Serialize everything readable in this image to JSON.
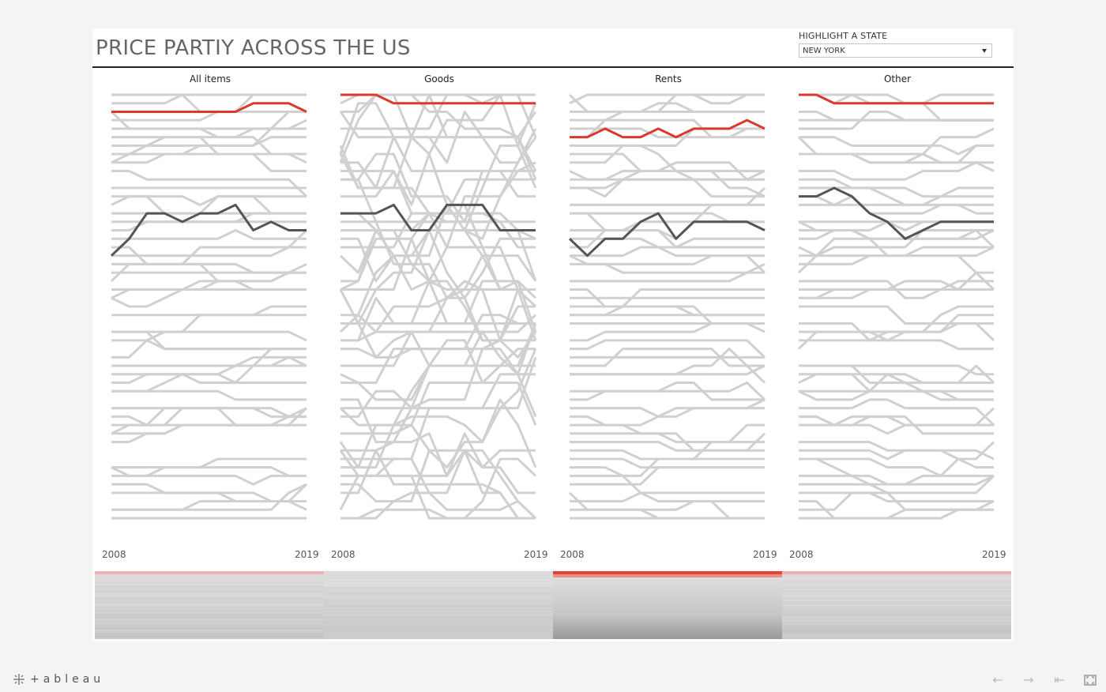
{
  "dashboard": {
    "title": "PRICE PARTIY ACROSS THE US",
    "filter": {
      "label": "HIGHLIGHT A STATE",
      "selected": "NEW YORK"
    }
  },
  "colors": {
    "highlight": "#d93a2b",
    "secondary": "#555555",
    "background_lines": "#d0d0d0"
  },
  "footer": {
    "brand": "+ableau",
    "icons": [
      "back-arrow-icon",
      "forward-arrow-icon",
      "revert-icon",
      "fullscreen-icon"
    ]
  },
  "chart_data": [
    {
      "type": "line",
      "title": "All items",
      "x": [
        2008,
        2009,
        2010,
        2011,
        2012,
        2013,
        2014,
        2015,
        2016,
        2017,
        2018,
        2019
      ],
      "xtick_labels": [
        "2008",
        "2019"
      ],
      "rank_range": [
        1,
        51
      ],
      "series": [
        {
          "values": [
            3,
            3,
            3,
            3,
            3,
            3,
            3,
            3,
            2,
            2,
            2,
            3
          ]
        },
        {
          "values": [
            20,
            18,
            15,
            15,
            16,
            15,
            15,
            14,
            17,
            16,
            17,
            17
          ]
        }
      ]
    },
    {
      "type": "line",
      "title": "Goods",
      "x": [
        2008,
        2009,
        2010,
        2011,
        2012,
        2013,
        2014,
        2015,
        2016,
        2017,
        2018,
        2019
      ],
      "xtick_labels": [
        "2008",
        "2019"
      ],
      "rank_range": [
        1,
        51
      ],
      "series": [
        {
          "values": [
            1,
            1,
            1,
            2,
            2,
            2,
            2,
            2,
            2,
            2,
            2,
            2
          ]
        },
        {
          "values": [
            15,
            15,
            15,
            14,
            17,
            17,
            14,
            14,
            14,
            17,
            17,
            17
          ]
        }
      ]
    },
    {
      "type": "line",
      "title": "Rents",
      "x": [
        2008,
        2009,
        2010,
        2011,
        2012,
        2013,
        2014,
        2015,
        2016,
        2017,
        2018,
        2019
      ],
      "xtick_labels": [
        "2008",
        "2019"
      ],
      "rank_range": [
        1,
        51
      ],
      "series": [
        {
          "values": [
            6,
            6,
            5,
            6,
            6,
            5,
            6,
            5,
            5,
            5,
            4,
            5
          ]
        },
        {
          "values": [
            18,
            20,
            18,
            18,
            16,
            15,
            18,
            16,
            16,
            16,
            16,
            17
          ]
        }
      ]
    },
    {
      "type": "line",
      "title": "Other",
      "x": [
        2008,
        2009,
        2010,
        2011,
        2012,
        2013,
        2014,
        2015,
        2016,
        2017,
        2018,
        2019
      ],
      "xtick_labels": [
        "2008",
        "2019"
      ],
      "rank_range": [
        1,
        51
      ],
      "series": [
        {
          "values": [
            1,
            1,
            2,
            2,
            2,
            2,
            2,
            2,
            2,
            2,
            2,
            2
          ]
        },
        {
          "values": [
            13,
            13,
            12,
            13,
            15,
            16,
            18,
            17,
            16,
            16,
            16,
            16
          ]
        }
      ]
    }
  ]
}
